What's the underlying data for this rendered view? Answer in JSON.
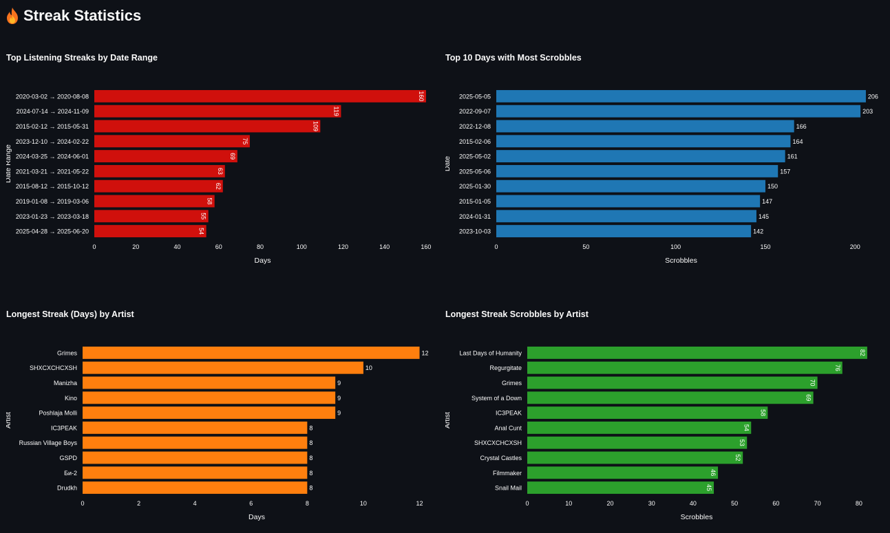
{
  "page": {
    "title": "Streak Statistics",
    "title_icon": "fire-icon",
    "background": "#0e1117",
    "text_color": "#fafafa"
  },
  "chart_data": [
    {
      "id": "streaks-by-range",
      "type": "bar",
      "orientation": "horizontal",
      "title": "Top Listening Streaks by Date Range",
      "xlabel": "Days",
      "ylabel": "Date Range",
      "color": "#d0100c",
      "label_position": "inside",
      "xlim": [
        0,
        165
      ],
      "xticks": [
        0,
        20,
        40,
        60,
        80,
        100,
        120,
        140,
        160
      ],
      "categories": [
        "2020-03-02 → 2020-08-08",
        "2024-07-14 → 2024-11-09",
        "2015-02-12 → 2015-05-31",
        "2023-12-10 → 2024-02-22",
        "2024-03-25 → 2024-06-01",
        "2021-03-21 → 2021-05-22",
        "2015-08-12 → 2015-10-12",
        "2019-01-08 → 2019-03-06",
        "2023-01-23 → 2023-03-18",
        "2025-04-28 → 2025-06-20"
      ],
      "values": [
        160,
        119,
        109,
        75,
        69,
        63,
        62,
        58,
        55,
        54
      ]
    },
    {
      "id": "top-scrobble-days",
      "type": "bar",
      "orientation": "horizontal",
      "title": "Top 10 Days with Most Scrobbles",
      "xlabel": "Scrobbles",
      "ylabel": "Date",
      "color": "#1f77b4",
      "label_position": "outside",
      "xlim": [
        0,
        216
      ],
      "xticks": [
        0,
        50,
        100,
        150,
        200
      ],
      "categories": [
        "2025-05-05",
        "2022-09-07",
        "2022-12-08",
        "2015-02-06",
        "2025-05-02",
        "2025-05-06",
        "2025-01-30",
        "2015-01-05",
        "2024-01-31",
        "2023-10-03"
      ],
      "values": [
        206,
        203,
        166,
        164,
        161,
        157,
        150,
        147,
        145,
        142
      ]
    },
    {
      "id": "streak-days-by-artist",
      "type": "bar",
      "orientation": "horizontal",
      "title": "Longest Streak (Days) by Artist",
      "xlabel": "Days",
      "ylabel": "Artist",
      "color": "#ff7f0e",
      "label_position": "outside",
      "xlim": [
        0,
        12.6
      ],
      "xticks": [
        0,
        2,
        4,
        6,
        8,
        10,
        12
      ],
      "categories": [
        "Grimes",
        "SHXCXCHCXSH",
        "Manizha",
        "Kino",
        "Poshlaja Molli",
        "IC3PEAK",
        "Russian Village Boys",
        "GSPD",
        "Би-2",
        "Drudkh"
      ],
      "values": [
        12,
        10,
        9,
        9,
        9,
        8,
        8,
        8,
        8,
        8
      ]
    },
    {
      "id": "streak-scrobbles-by-artist",
      "type": "bar",
      "orientation": "horizontal",
      "title": "Longest Streak Scrobbles by Artist",
      "xlabel": "Scrobbles",
      "ylabel": "Artist",
      "color": "#2ca02c",
      "label_position": "inside",
      "xlim": [
        0,
        86
      ],
      "xticks": [
        0,
        10,
        20,
        30,
        40,
        50,
        60,
        70,
        80
      ],
      "categories": [
        "Last Days of Humanity",
        "Regurgitate",
        "Grimes",
        "System of a Down",
        "IC3PEAK",
        "Anal Cunt",
        "SHXCXCHCXSH",
        "Crystal Castles",
        "Filmmaker",
        "Snail Mail"
      ],
      "values": [
        82,
        76,
        70,
        69,
        58,
        54,
        53,
        52,
        46,
        45
      ]
    }
  ]
}
